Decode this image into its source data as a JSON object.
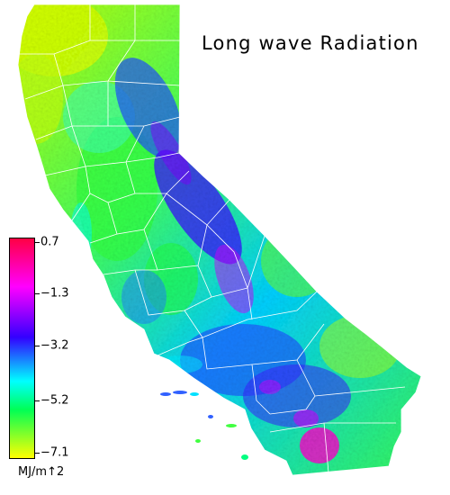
{
  "title": "Long wave Radiation",
  "legend": {
    "ticks": [
      "0.7",
      "−1.3",
      "−3.2",
      "−5.2",
      "−7.1"
    ],
    "unit": "MJ/m↑2"
  },
  "colors": {
    "max": "#ff0044",
    "high": "#ff00ff",
    "mid_high": "#3300ff",
    "mid": "#00ffff",
    "mid_low": "#00ff55",
    "min": "#ffff00",
    "background": "#ffffff"
  }
}
